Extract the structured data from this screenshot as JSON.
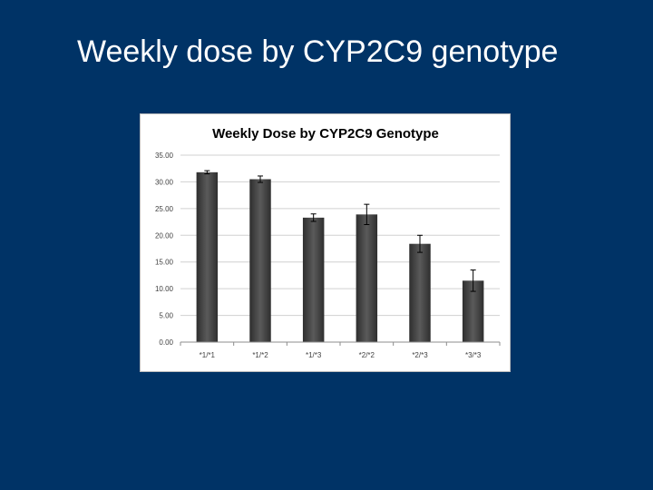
{
  "slide": {
    "title": "Weekly dose by CYP2C9 genotype",
    "background_color": "#003366"
  },
  "chart_data": {
    "type": "bar",
    "title": "Weekly Dose by CYP2C9 Genotype",
    "xlabel": "",
    "ylabel": "",
    "categories": [
      "*1/*1",
      "*1/*2",
      "*1/*3",
      "*2/*2",
      "*2/*3",
      "*3/*3"
    ],
    "values": [
      31.8,
      30.5,
      23.3,
      23.9,
      18.4,
      11.5
    ],
    "error": [
      0.3,
      0.6,
      0.7,
      1.9,
      1.6,
      2.0
    ],
    "ylim": [
      0,
      35
    ],
    "yticks": [
      "0.00",
      "5.00",
      "10.00",
      "15.00",
      "20.00",
      "25.00",
      "30.00",
      "35.00"
    ],
    "grid": true,
    "legend": "none",
    "bar_color": "#404040"
  }
}
